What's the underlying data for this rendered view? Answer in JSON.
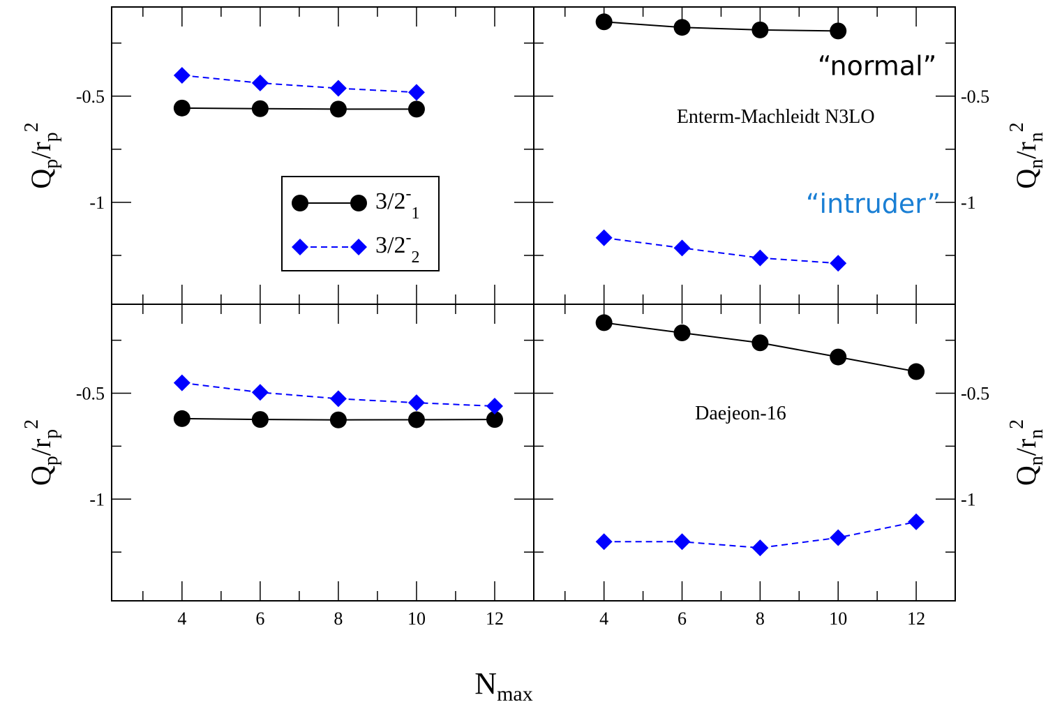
{
  "chart_data": {
    "type": "scatter",
    "xlabel": "N",
    "xlabel_sub": "max",
    "x_ticks": [
      "4",
      "6",
      "8",
      "10",
      "12"
    ],
    "xlim": [
      2.2,
      13.0
    ],
    "legend": {
      "placement": "top-left panel",
      "entries": [
        {
          "base": "3/2",
          "sup": "-",
          "sub": "1"
        },
        {
          "base": "3/2",
          "sup": "-",
          "sub": "2"
        }
      ]
    },
    "colors": {
      "normal": "#000000",
      "intruder": "#0000ff"
    },
    "panels": [
      {
        "id": "top-left",
        "ylabel": {
          "base": "Q",
          "s1": "p",
          "mid": "/r",
          "s2": "p",
          "sup": "2"
        },
        "ylabel_side": "left",
        "ylim": [
          -1.48,
          -0.08
        ],
        "y_ticks": [
          {
            "value": -0.5,
            "label": "-0.5"
          },
          {
            "value": -1,
            "label": "-1"
          }
        ],
        "series": [
          {
            "x": [
              4,
              6,
              8,
              10
            ],
            "y": [
              -0.556,
              -0.559,
              -0.561,
              -0.561
            ],
            "color": "#000000",
            "marker": "circle",
            "line": "solid"
          },
          {
            "x": [
              4,
              6,
              8,
              10
            ],
            "y": [
              -0.402,
              -0.438,
              -0.463,
              -0.482
            ],
            "color": "#0000ff",
            "marker": "diamond",
            "line": "dashed"
          }
        ]
      },
      {
        "id": "top-right",
        "ylabel": {
          "base": "Q",
          "s1": "n",
          "mid": "/r",
          "s2": "n",
          "sup": "2"
        },
        "ylabel_side": "right",
        "ylim": [
          -1.48,
          -0.08
        ],
        "y_ticks": [
          {
            "value": -0.5,
            "label": "-0.5"
          },
          {
            "value": -1,
            "label": "-1"
          }
        ],
        "annotations": [
          {
            "text": "Enterm-Machleidt N3LO",
            "x": 8.4,
            "y": -0.626,
            "style": "serif",
            "color": "#000000"
          },
          {
            "text": "“normal”",
            "x": 11.0,
            "y": -0.4,
            "style": "hand",
            "color": "#000000"
          },
          {
            "text": "“intruder”",
            "x": 10.9,
            "y": -1.05,
            "style": "hand",
            "color": "#1a7fd4"
          }
        ],
        "series": [
          {
            "x": [
              4,
              6,
              8,
              10
            ],
            "y": [
              -0.15,
              -0.176,
              -0.188,
              -0.193
            ],
            "color": "#000000",
            "marker": "circle",
            "line": "solid"
          },
          {
            "x": [
              4,
              6,
              8,
              10
            ],
            "y": [
              -1.167,
              -1.215,
              -1.262,
              -1.287
            ],
            "color": "#0000ff",
            "marker": "diamond",
            "line": "dashed"
          }
        ]
      },
      {
        "id": "bottom-left",
        "ylabel": {
          "base": "Q",
          "s1": "p",
          "mid": "/r",
          "s2": "p",
          "sup": "2"
        },
        "ylabel_side": "left",
        "ylim": [
          -1.48,
          -0.08
        ],
        "y_ticks": [
          {
            "value": -0.5,
            "label": "-0.5"
          },
          {
            "value": -1,
            "label": "-1"
          }
        ],
        "series": [
          {
            "x": [
              4,
              6,
              8,
              10,
              12
            ],
            "y": [
              -0.62,
              -0.624,
              -0.626,
              -0.625,
              -0.624
            ],
            "color": "#000000",
            "marker": "circle",
            "line": "solid"
          },
          {
            "x": [
              4,
              6,
              8,
              10,
              12
            ],
            "y": [
              -0.451,
              -0.496,
              -0.526,
              -0.545,
              -0.561
            ],
            "color": "#0000ff",
            "marker": "diamond",
            "line": "dashed"
          }
        ]
      },
      {
        "id": "bottom-right",
        "ylabel": {
          "base": "Q",
          "s1": "n",
          "mid": "/r",
          "s2": "n",
          "sup": "2"
        },
        "ylabel_side": "right",
        "ylim": [
          -1.48,
          -0.08
        ],
        "y_ticks": [
          {
            "value": -0.5,
            "label": "-0.5"
          },
          {
            "value": -1,
            "label": "-1"
          }
        ],
        "annotations": [
          {
            "text": "Daejeon-16",
            "x": 7.5,
            "y": -0.624,
            "style": "serif",
            "color": "#000000"
          }
        ],
        "series": [
          {
            "x": [
              4,
              6,
              8,
              10,
              12
            ],
            "y": [
              -0.167,
              -0.215,
              -0.262,
              -0.329,
              -0.398
            ],
            "color": "#000000",
            "marker": "circle",
            "line": "solid"
          },
          {
            "x": [
              4,
              6,
              8,
              10,
              12
            ],
            "y": [
              -1.201,
              -1.201,
              -1.23,
              -1.182,
              -1.107
            ],
            "color": "#0000ff",
            "marker": "diamond",
            "line": "dashed"
          }
        ]
      }
    ]
  }
}
